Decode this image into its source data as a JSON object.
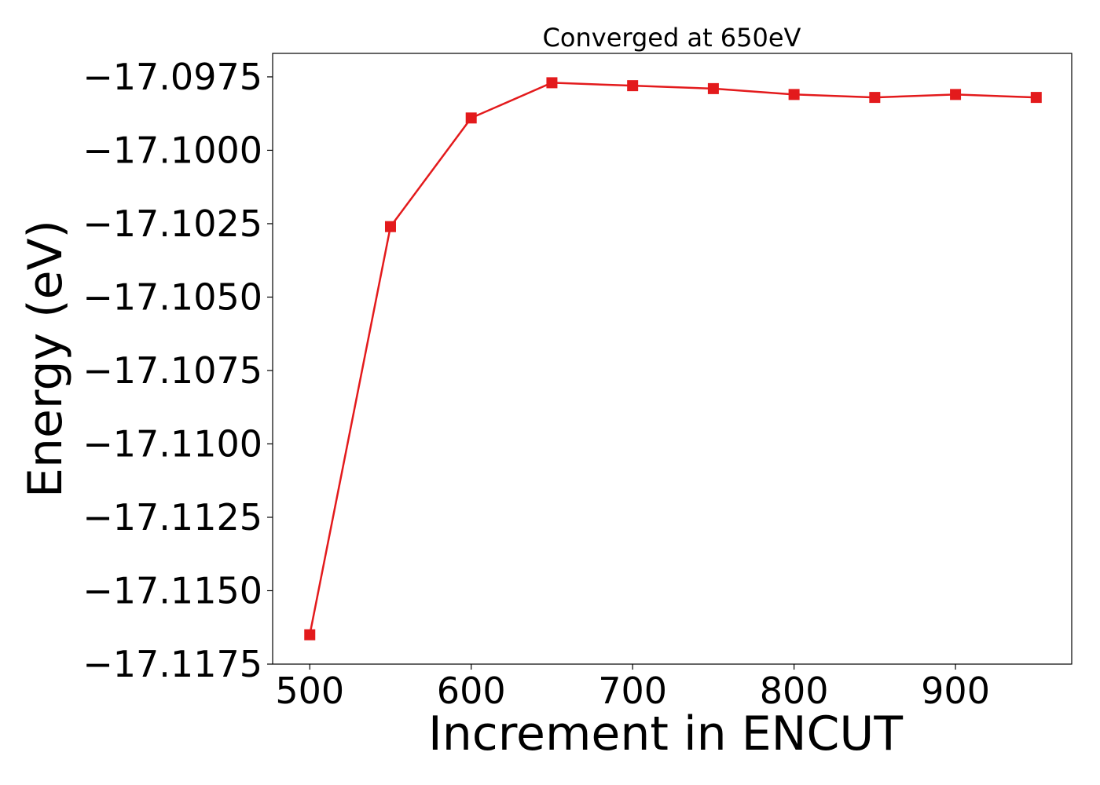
{
  "chart_data": {
    "type": "line",
    "title": "Converged at 650eV",
    "xlabel": "Increment in ENCUT",
    "ylabel": "Energy (eV)",
    "xlim": [
      477,
      972
    ],
    "ylim": [
      -17.1175,
      -17.0967
    ],
    "x_ticks": [
      500,
      600,
      700,
      800,
      900
    ],
    "x_tick_labels": [
      "500",
      "600",
      "700",
      "800",
      "900"
    ],
    "y_ticks": [
      -17.0975,
      -17.1,
      -17.1025,
      -17.105,
      -17.1075,
      -17.11,
      -17.1125,
      -17.115,
      -17.1175
    ],
    "y_tick_labels": [
      "−17.0975",
      "−17.1000",
      "−17.1025",
      "−17.1050",
      "−17.1075",
      "−17.1100",
      "−17.1125",
      "−17.1150",
      "−17.1175"
    ],
    "grid": false,
    "series": [
      {
        "color": "#e31a1c",
        "marker": "square",
        "x": [
          500,
          550,
          600,
          650,
          700,
          750,
          800,
          850,
          900,
          950
        ],
        "y": [
          -17.1165,
          -17.1026,
          -17.0989,
          -17.0977,
          -17.0978,
          -17.0979,
          -17.0981,
          -17.0982,
          -17.0981,
          -17.0982
        ]
      }
    ]
  }
}
